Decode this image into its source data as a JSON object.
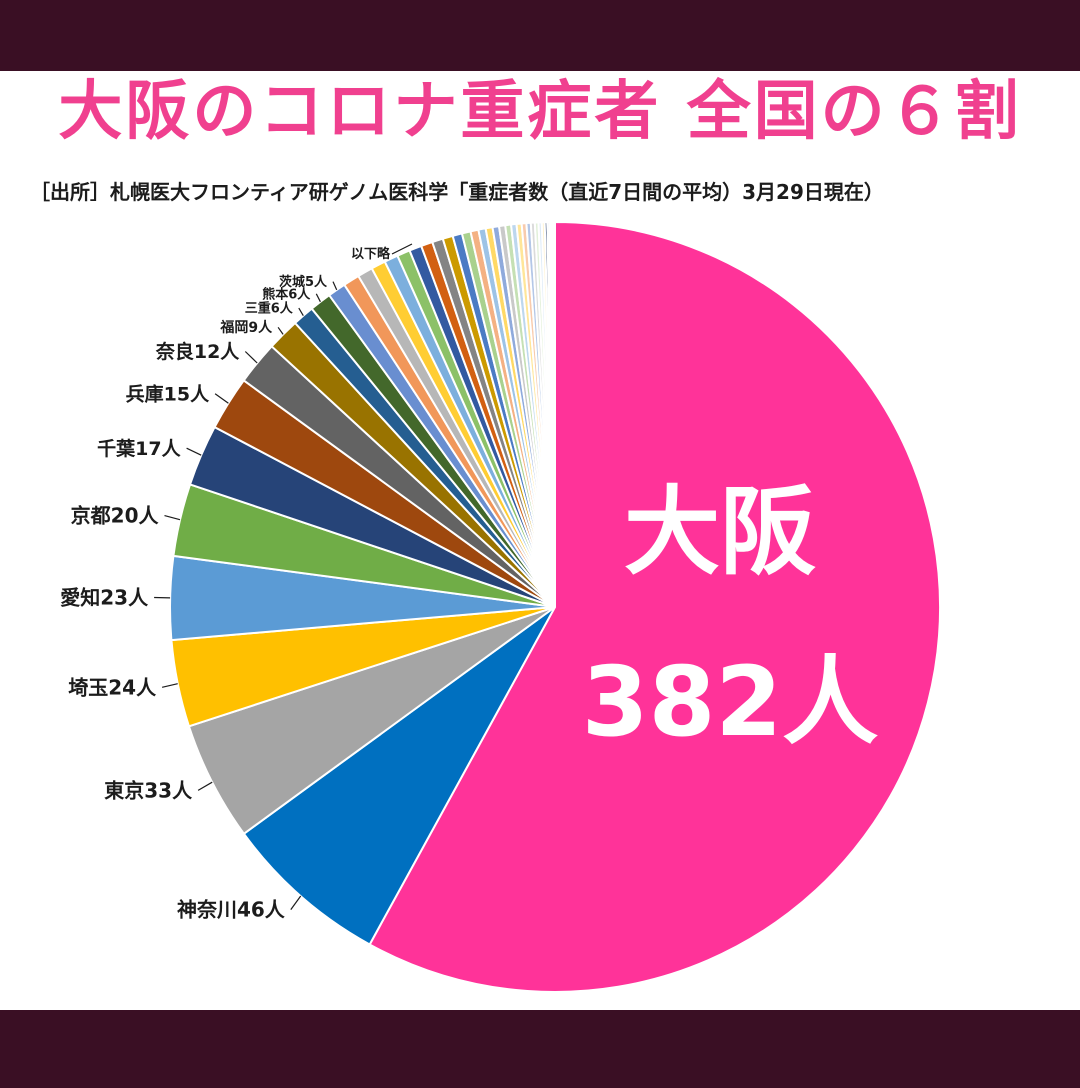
{
  "header": {
    "title": "大阪のコロナ重症者 全国の６割",
    "subtitle": "［出所］札幌医大フロンティア研ゲノム医科学「重症者数（直近7日間の平均）3月29日現在）"
  },
  "chart_data": {
    "type": "pie",
    "title": "大阪のコロナ重症者 全国の６割",
    "callout": {
      "name": "大阪",
      "value_label": "382人"
    },
    "other_label": "以下略",
    "slices": [
      {
        "name": "大阪",
        "value": 382,
        "label": "",
        "color": "#ff3399"
      },
      {
        "name": "神奈川",
        "value": 46,
        "label": "神奈川46人",
        "color": "#0070c0"
      },
      {
        "name": "東京",
        "value": 33,
        "label": "東京33人",
        "color": "#a5a5a5"
      },
      {
        "name": "埼玉",
        "value": 24,
        "label": "埼玉24人",
        "color": "#ffc000"
      },
      {
        "name": "愛知",
        "value": 23,
        "label": "愛知23人",
        "color": "#5b9bd5"
      },
      {
        "name": "京都",
        "value": 20,
        "label": "京都20人",
        "color": "#70ad47"
      },
      {
        "name": "千葉",
        "value": 17,
        "label": "千葉17人",
        "color": "#264478"
      },
      {
        "name": "兵庫",
        "value": 15,
        "label": "兵庫15人",
        "color": "#9e480e"
      },
      {
        "name": "奈良",
        "value": 12,
        "label": "奈良12人",
        "color": "#636363"
      },
      {
        "name": "福岡",
        "value": 9,
        "label": "福岡9人",
        "color": "#997300"
      },
      {
        "name": "三重",
        "value": 6,
        "label": "三重6人",
        "color": "#255e91"
      },
      {
        "name": "熊本",
        "value": 6,
        "label": "熊本6人",
        "color": "#43682b"
      },
      {
        "name": "茨城",
        "value": 5,
        "label": "茨城5人",
        "color": "#698ed0"
      },
      {
        "name": "",
        "value": 4.5,
        "label": "",
        "color": "#f1975a"
      },
      {
        "name": "",
        "value": 4.2,
        "label": "",
        "color": "#b7b7b7"
      },
      {
        "name": "",
        "value": 4,
        "label": "",
        "color": "#ffcd33"
      },
      {
        "name": "",
        "value": 3.8,
        "label": "",
        "color": "#7cafdd"
      },
      {
        "name": "",
        "value": 3.6,
        "label": "",
        "color": "#8cc168"
      },
      {
        "name": "",
        "value": 3.4,
        "label": "",
        "color": "#335aa1"
      },
      {
        "name": "",
        "value": 3.2,
        "label": "",
        "color": "#d26012"
      },
      {
        "name": "",
        "value": 3,
        "label": "",
        "color": "#848484"
      },
      {
        "name": "",
        "value": 2.8,
        "label": "",
        "color": "#cc9a00"
      },
      {
        "name": "",
        "value": 2.6,
        "label": "",
        "color": "#4b7bc4"
      },
      {
        "name": "",
        "value": 2.4,
        "label": "",
        "color": "#a9d18e"
      },
      {
        "name": "",
        "value": 2.2,
        "label": "",
        "color": "#f4b183"
      },
      {
        "name": "",
        "value": 2,
        "label": "",
        "color": "#9dc3e6"
      },
      {
        "name": "",
        "value": 1.9,
        "label": "",
        "color": "#ffd966"
      },
      {
        "name": "",
        "value": 1.8,
        "label": "",
        "color": "#8faadc"
      },
      {
        "name": "",
        "value": 1.7,
        "label": "",
        "color": "#c9c9c9"
      },
      {
        "name": "",
        "value": 1.6,
        "label": "",
        "color": "#c5e0b4"
      },
      {
        "name": "",
        "value": 1.5,
        "label": "",
        "color": "#bdd7ee"
      },
      {
        "name": "",
        "value": 1.4,
        "label": "",
        "color": "#ffe699"
      },
      {
        "name": "",
        "value": 1.3,
        "label": "",
        "color": "#f8cbad"
      },
      {
        "name": "",
        "value": 1.2,
        "label": "",
        "color": "#b4c7e7"
      },
      {
        "name": "",
        "value": 1.1,
        "label": "",
        "color": "#dbdbdb"
      },
      {
        "name": "",
        "value": 1,
        "label": "",
        "color": "#e2f0d9"
      },
      {
        "name": "",
        "value": 0.9,
        "label": "",
        "color": "#deebf7"
      },
      {
        "name": "",
        "value": 0.8,
        "label": "",
        "color": "#fff2cc"
      },
      {
        "name": "",
        "value": 0.7,
        "label": "",
        "color": "#1f3864"
      },
      {
        "name": "",
        "value": 0.6,
        "label": "",
        "color": "#d9e2f3"
      },
      {
        "name": "",
        "value": 0.5,
        "label": "",
        "color": "#2e75b6"
      },
      {
        "name": "",
        "value": 0.4,
        "label": "",
        "color": "#fbe5d6"
      },
      {
        "name": "",
        "value": 0.3,
        "label": "",
        "color": "#385723"
      },
      {
        "name": "",
        "value": 0.2,
        "label": "",
        "color": "#ededed"
      },
      {
        "name": "",
        "value": 0.1,
        "label": "",
        "color": "#843c0c"
      }
    ]
  }
}
